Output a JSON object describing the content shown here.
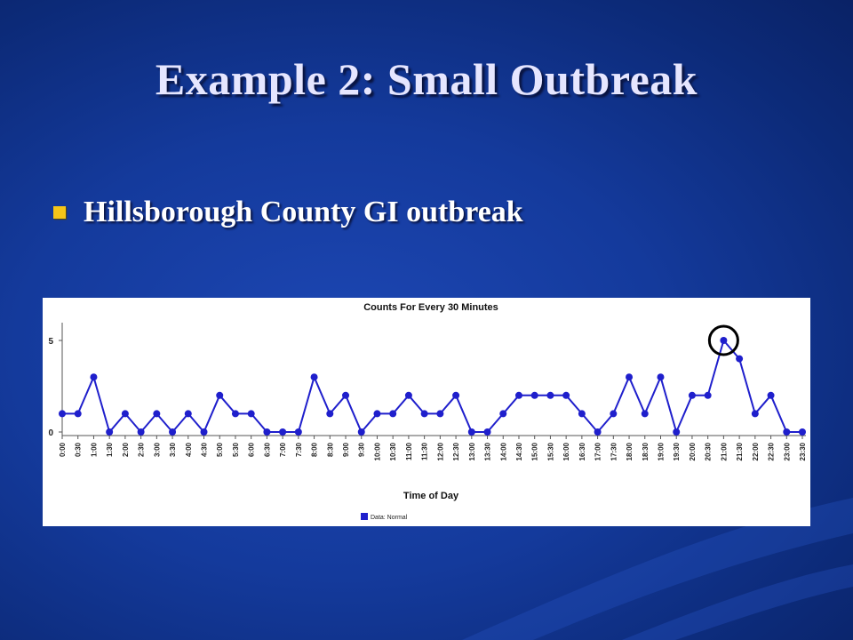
{
  "slide": {
    "title": "Example 2: Small Outbreak",
    "bullet": "Hillsborough County GI outbreak"
  },
  "colors": {
    "series": "#1f1fcc",
    "bullet": "#f5c518",
    "highlight_circle": "#000000"
  },
  "chart_data": {
    "type": "line",
    "title": "Counts For Every 30 Minutes",
    "xlabel": "Time of Day",
    "ylabel": "",
    "ylim": [
      0,
      5
    ],
    "yticks": [
      0,
      5
    ],
    "x": [
      "0:00",
      "0:30",
      "1:00",
      "1:30",
      "2:00",
      "2:30",
      "3:00",
      "3:30",
      "4:00",
      "4:30",
      "5:00",
      "5:30",
      "6:00",
      "6:30",
      "7:00",
      "7:30",
      "8:00",
      "8:30",
      "9:00",
      "9:30",
      "10:00",
      "10:30",
      "11:00",
      "11:30",
      "12:00",
      "12:30",
      "13:00",
      "13:30",
      "14:00",
      "14:30",
      "15:00",
      "15:30",
      "16:00",
      "16:30",
      "17:00",
      "17:30",
      "18:00",
      "18:30",
      "19:00",
      "19:30",
      "20:00",
      "20:30",
      "21:00",
      "21:30",
      "22:00",
      "22:30",
      "23:00",
      "23:30"
    ],
    "series": [
      {
        "name": "Data: Normal",
        "values": [
          1,
          1,
          3,
          0,
          1,
          0,
          1,
          0,
          1,
          0,
          2,
          1,
          1,
          0,
          0,
          0,
          3,
          1,
          2,
          0,
          1,
          1,
          2,
          1,
          1,
          2,
          0,
          0,
          1,
          2,
          2,
          2,
          2,
          1,
          0,
          1,
          3,
          1,
          3,
          0,
          2,
          2,
          5,
          4,
          1,
          2,
          0,
          0
        ]
      }
    ],
    "highlight_x": "21:00",
    "legend_position": "bottom-left",
    "grid": false
  }
}
